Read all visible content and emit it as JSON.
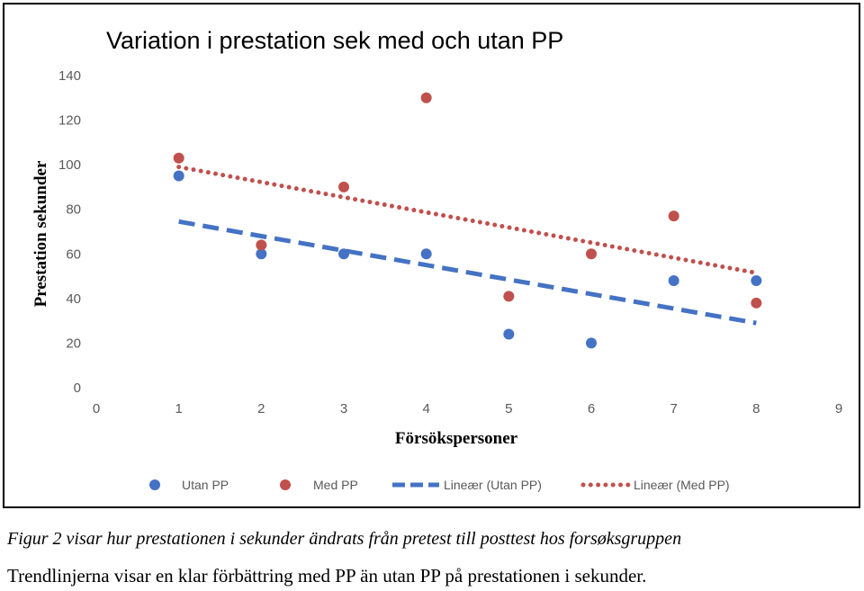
{
  "chart_data": {
    "type": "scatter",
    "title": "Variation i prestation sek med och utan PP",
    "xlabel": "Försökspersoner",
    "ylabel": "Prestation sekunder",
    "xlim": [
      0,
      9
    ],
    "ylim": [
      0,
      140
    ],
    "x_ticks": [
      "0",
      "1",
      "2",
      "3",
      "4",
      "5",
      "6",
      "7",
      "8",
      "9"
    ],
    "y_ticks": [
      "0",
      "20",
      "40",
      "60",
      "80",
      "100",
      "120",
      "140"
    ],
    "grid": false,
    "legend_position": "bottom",
    "series": [
      {
        "name": "Utan PP",
        "color": "#4472C4",
        "x": [
          1,
          2,
          3,
          4,
          5,
          6,
          7,
          8
        ],
        "y": [
          95,
          60,
          60,
          60,
          24,
          20,
          48,
          48
        ]
      },
      {
        "name": "Med PP",
        "color": "#C0504D",
        "x": [
          1,
          2,
          3,
          4,
          5,
          6,
          7,
          8
        ],
        "y": [
          103,
          64,
          90,
          130,
          41,
          60,
          77,
          38
        ]
      }
    ],
    "trendlines": [
      {
        "name": "Lineær (Utan PP)",
        "color": "#4472C4",
        "style": "dashed",
        "x": [
          1,
          8
        ],
        "y": [
          74.5,
          29
        ]
      },
      {
        "name": "Lineær (Med PP)",
        "color": "#C0504D",
        "style": "dotted",
        "x": [
          1,
          8
        ],
        "y": [
          99,
          51.5
        ]
      }
    ]
  },
  "caption": {
    "line1": "Figur 2 visar hur prestationen i sekunder ändrats från pretest till posttest hos forsøksgruppen",
    "line2": "Trendlinjerna visar en klar förbättring med PP än utan PP på prestationen i sekunder."
  }
}
